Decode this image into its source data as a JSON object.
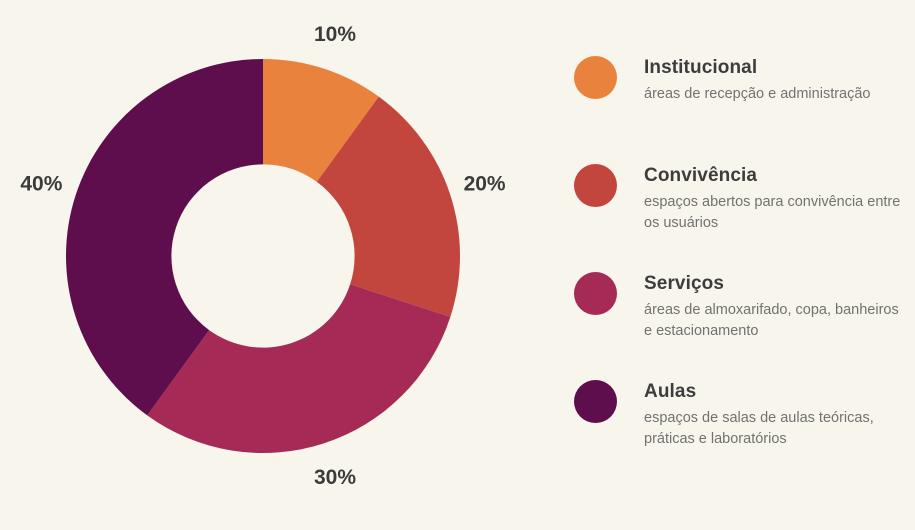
{
  "chart_data": {
    "type": "pie",
    "subtype": "donut",
    "title": "",
    "background": "#F8F6EC",
    "direction": "clockwise",
    "start_angle_deg": 0,
    "inner_radius_ratio": 0.465,
    "legend_position": "right",
    "grid": false,
    "categories": [
      "Institucional",
      "Convivência",
      "Serviços",
      "Aulas"
    ],
    "values": [
      10,
      20,
      30,
      40
    ],
    "segments": [
      {
        "id": "institucional",
        "label": "Institucional",
        "value_pct": 10,
        "percent_label": "10%",
        "color": "#E8823C",
        "description": "áreas de recepção e administração"
      },
      {
        "id": "convivencia",
        "label": "Convivência",
        "value_pct": 20,
        "percent_label": "20%",
        "color": "#C2463E",
        "description": "espaços abertos para convivência entre os usuários"
      },
      {
        "id": "servicos",
        "label": "Serviços",
        "value_pct": 30,
        "percent_label": "30%",
        "color": "#A52A56",
        "description": "áreas de almoxarifado, copa, banheiros e estacionamento"
      },
      {
        "id": "aulas",
        "label": "Aulas",
        "value_pct": 40,
        "percent_label": "40%",
        "color": "#5E0E4D",
        "description": "espaços de salas de aulas teóricas, práticas e laboratórios"
      }
    ]
  }
}
